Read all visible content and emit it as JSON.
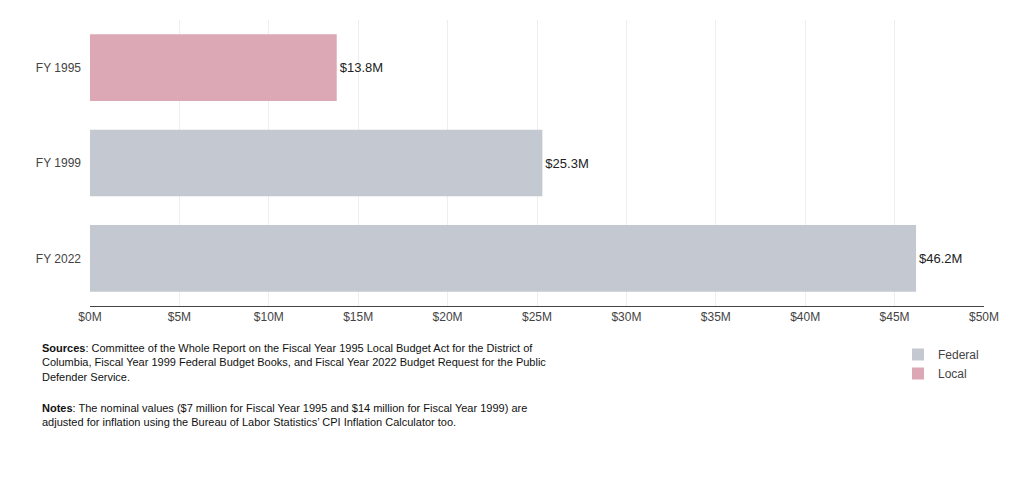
{
  "chart_data": {
    "type": "bar",
    "orientation": "horizontal",
    "categories": [
      "FY 1995",
      "FY 1999",
      "FY 2022"
    ],
    "series": [
      {
        "name": "Federal",
        "color": "#c4c8d0",
        "values": [
          null,
          25.3,
          46.2
        ],
        "value_labels": [
          null,
          "$25.3M",
          "$46.2M"
        ]
      },
      {
        "name": "Local",
        "color": "#dda8b5",
        "values": [
          13.8,
          null,
          null
        ],
        "value_labels": [
          "$13.8M",
          null,
          null
        ]
      }
    ],
    "xlim": [
      0,
      50
    ],
    "xticks": [
      {
        "value": 0,
        "label": "$0M"
      },
      {
        "value": 5,
        "label": "$5M"
      },
      {
        "value": 10,
        "label": "$10M"
      },
      {
        "value": 15,
        "label": "$15M"
      },
      {
        "value": 20,
        "label": "$20M"
      },
      {
        "value": 25,
        "label": "$25M"
      },
      {
        "value": 30,
        "label": "$30M"
      },
      {
        "value": 35,
        "label": "$35M"
      },
      {
        "value": 40,
        "label": "$40M"
      },
      {
        "value": 45,
        "label": "$45M"
      },
      {
        "value": 50,
        "label": "$50M"
      }
    ],
    "grid": true,
    "legend": "lower right",
    "data_labels": true,
    "annotations": [
      "Sources: Committee of the Whole Report on the Fiscal Year 1995 Local Budget Act for the District of\nColumbia, Fiscal Year 1999 Federal Budget Books, and Fiscal Year 2022 Budget Request for the Public\nDefender Service.",
      "Notes: The nominal values ($7 million for Fiscal Year 1995 and $14 million for Fiscal Year 1999) are\nadjusted for inflation using the Bureau of Labor Statistics’ CPI Inflation Calculator too."
    ]
  }
}
